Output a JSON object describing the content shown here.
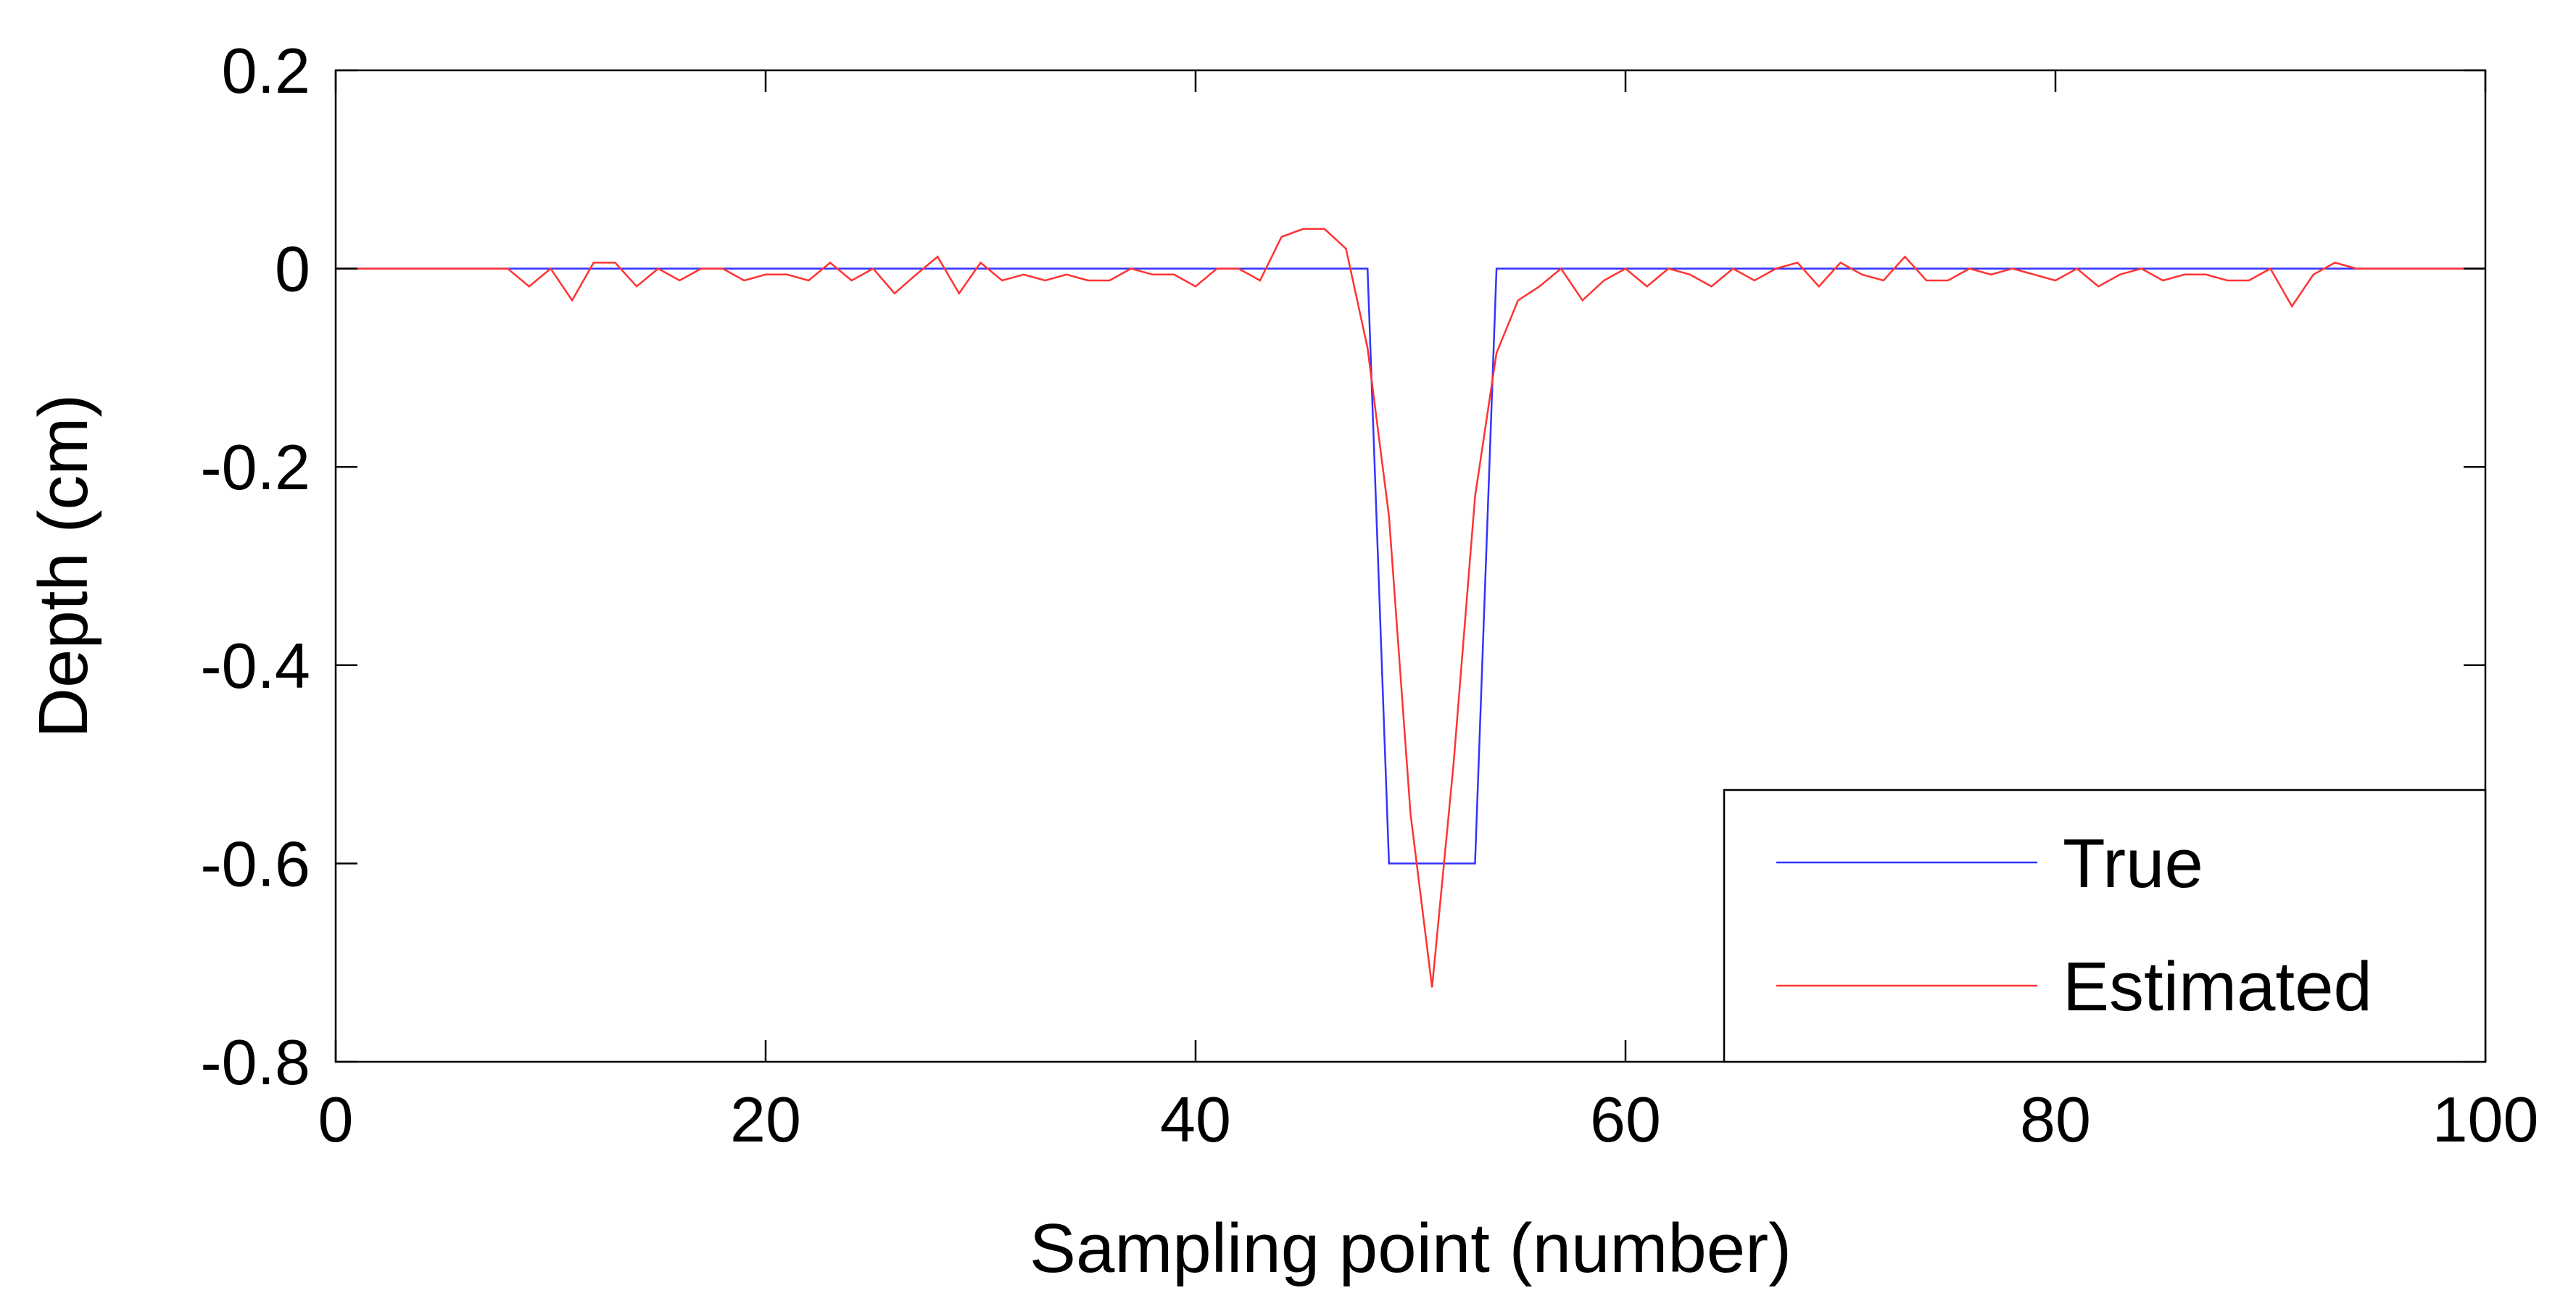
{
  "chart_data": {
    "type": "line",
    "xlabel": "Sampling point (number)",
    "ylabel": "Depth (cm)",
    "xlim": [
      0,
      100
    ],
    "ylim": [
      -0.8,
      0.2
    ],
    "xticks": [
      0,
      20,
      40,
      60,
      80,
      100
    ],
    "yticks": [
      0.2,
      0,
      -0.2,
      -0.4,
      -0.6,
      -0.8
    ],
    "xtick_labels": [
      "0",
      "20",
      "40",
      "60",
      "80",
      "100"
    ],
    "ytick_labels": [
      "0.2",
      "0",
      "-0.2",
      "-0.4",
      "-0.6",
      "-0.8"
    ],
    "grid": false,
    "legend_position": "bottom-right",
    "series": [
      {
        "name": "True",
        "color": "#3333ff",
        "x": [
          0,
          48,
          49,
          53,
          54,
          100
        ],
        "y": [
          0,
          0,
          -0.6,
          -0.6,
          0,
          0
        ]
      },
      {
        "name": "Estimated",
        "color": "#ff3333",
        "x": [
          0,
          1,
          2,
          3,
          4,
          5,
          6,
          7,
          8,
          9,
          10,
          11,
          12,
          13,
          14,
          15,
          16,
          17,
          18,
          19,
          20,
          21,
          22,
          23,
          24,
          25,
          26,
          27,
          28,
          29,
          30,
          31,
          32,
          33,
          34,
          35,
          36,
          37,
          38,
          39,
          40,
          41,
          42,
          43,
          44,
          45,
          46,
          47,
          48,
          49,
          50,
          51,
          52,
          53,
          54,
          55,
          56,
          57,
          58,
          59,
          60,
          61,
          62,
          63,
          64,
          65,
          66,
          67,
          68,
          69,
          70,
          71,
          72,
          73,
          74,
          75,
          76,
          77,
          78,
          79,
          80,
          81,
          82,
          83,
          84,
          85,
          86,
          87,
          88,
          89,
          90,
          91,
          92,
          93,
          94,
          95,
          96,
          97,
          98,
          99,
          100
        ],
        "y": [
          0,
          0,
          0,
          0,
          0,
          0,
          0,
          0,
          0,
          -0.018,
          0,
          -0.032,
          0.006,
          0.006,
          -0.018,
          0,
          -0.012,
          0,
          0,
          -0.012,
          -0.006,
          -0.006,
          -0.012,
          0.006,
          -0.012,
          0,
          -0.025,
          -0.006,
          0.012,
          -0.025,
          0.006,
          -0.012,
          -0.006,
          -0.012,
          -0.006,
          -0.012,
          -0.012,
          0,
          -0.006,
          -0.006,
          -0.018,
          0,
          0,
          -0.012,
          0.032,
          0.04,
          0.04,
          0.02,
          -0.08,
          -0.25,
          -0.55,
          -0.725,
          -0.5,
          -0.23,
          -0.085,
          -0.032,
          -0.018,
          0,
          -0.032,
          -0.012,
          0,
          -0.018,
          0,
          -0.006,
          -0.018,
          0,
          -0.012,
          0,
          0.006,
          -0.018,
          0.006,
          -0.006,
          -0.012,
          0.012,
          -0.012,
          -0.012,
          0,
          -0.006,
          0,
          -0.006,
          -0.012,
          0,
          -0.018,
          -0.006,
          0,
          -0.012,
          -0.006,
          -0.006,
          -0.012,
          -0.012,
          0,
          -0.038,
          -0.006,
          0.006,
          0,
          0,
          0,
          0,
          0,
          0,
          0
        ]
      }
    ]
  }
}
